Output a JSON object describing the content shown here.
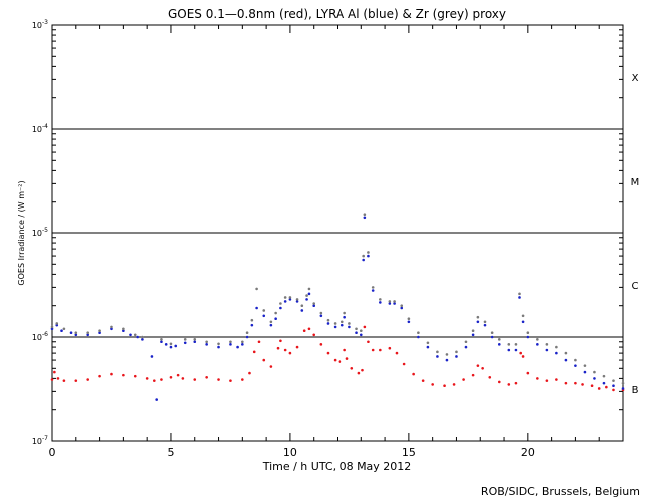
{
  "chart_data": {
    "type": "scatter",
    "title": "GOES 0.1—0.8nm (red), LYRA Al (blue) & Zr (grey) proxy",
    "xlabel": "Time / h UTC, 08 May 2012",
    "ylabel": "GOES Irradiance / (W m⁻²)",
    "xlim": [
      0,
      24
    ],
    "ylim": [
      1e-07,
      0.001
    ],
    "yscale": "log",
    "x_ticks": [
      0,
      5,
      10,
      15,
      20
    ],
    "x_tick_labels": [
      "0",
      "5",
      "10",
      "15",
      "20"
    ],
    "y_ticks": [
      1e-07,
      1e-06,
      1e-05,
      0.0001,
      0.001
    ],
    "y_tick_labels": [
      {
        "base": "10",
        "exp": "-7"
      },
      {
        "base": "10",
        "exp": "-6"
      },
      {
        "base": "10",
        "exp": "-5"
      },
      {
        "base": "10",
        "exp": "-4"
      },
      {
        "base": "10",
        "exp": "-3"
      }
    ],
    "reference_lines": [
      1e-06,
      1e-05,
      0.0001
    ],
    "flare_classes": [
      {
        "label": "X",
        "value": 0.000316
      },
      {
        "label": "M",
        "value": 3.16e-05
      },
      {
        "label": "C",
        "value": 3.16e-06
      },
      {
        "label": "B",
        "value": 3.16e-07
      }
    ],
    "series": [
      {
        "name": "GOES 0.1-0.8nm",
        "color": "#e8151b",
        "points": [
          [
            0.0,
            3.9e-07
          ],
          [
            0.1,
            4.6e-07
          ],
          [
            0.25,
            4e-07
          ],
          [
            0.5,
            3.8e-07
          ],
          [
            1.0,
            3.8e-07
          ],
          [
            1.5,
            3.9e-07
          ],
          [
            2.0,
            4.2e-07
          ],
          [
            2.5,
            4.4e-07
          ],
          [
            3.0,
            4.3e-07
          ],
          [
            3.5,
            4.2e-07
          ],
          [
            4.0,
            4e-07
          ],
          [
            4.3,
            3.8e-07
          ],
          [
            4.6,
            3.9e-07
          ],
          [
            5.0,
            4.1e-07
          ],
          [
            5.3,
            4.3e-07
          ],
          [
            5.5,
            4e-07
          ],
          [
            6.0,
            3.9e-07
          ],
          [
            6.5,
            4.1e-07
          ],
          [
            7.0,
            3.9e-07
          ],
          [
            7.5,
            3.8e-07
          ],
          [
            8.0,
            3.9e-07
          ],
          [
            8.3,
            4.5e-07
          ],
          [
            8.5,
            7.2e-07
          ],
          [
            8.7,
            9e-07
          ],
          [
            8.9,
            6e-07
          ],
          [
            9.2,
            5.2e-07
          ],
          [
            9.5,
            7.8e-07
          ],
          [
            9.6,
            9.2e-07
          ],
          [
            9.8,
            7.5e-07
          ],
          [
            10.0,
            7e-07
          ],
          [
            10.3,
            8e-07
          ],
          [
            10.6,
            1.15e-06
          ],
          [
            10.8,
            1.2e-06
          ],
          [
            11.0,
            1.05e-06
          ],
          [
            11.3,
            8.5e-07
          ],
          [
            11.6,
            7e-07
          ],
          [
            11.9,
            6e-07
          ],
          [
            12.1,
            5.8e-07
          ],
          [
            12.3,
            7.5e-07
          ],
          [
            12.4,
            6.2e-07
          ],
          [
            12.6,
            5e-07
          ],
          [
            12.9,
            4.5e-07
          ],
          [
            13.05,
            4.8e-07
          ],
          [
            13.15,
            1.25e-06
          ],
          [
            13.3,
            9e-07
          ],
          [
            13.5,
            7.5e-07
          ],
          [
            13.8,
            7.5e-07
          ],
          [
            14.2,
            7.8e-07
          ],
          [
            14.5,
            7e-07
          ],
          [
            14.8,
            5.5e-07
          ],
          [
            15.2,
            4.4e-07
          ],
          [
            15.6,
            3.8e-07
          ],
          [
            16.0,
            3.5e-07
          ],
          [
            16.5,
            3.4e-07
          ],
          [
            16.9,
            3.5e-07
          ],
          [
            17.3,
            3.9e-07
          ],
          [
            17.7,
            4.3e-07
          ],
          [
            17.9,
            5.3e-07
          ],
          [
            18.1,
            5e-07
          ],
          [
            18.4,
            4.1e-07
          ],
          [
            18.8,
            3.7e-07
          ],
          [
            19.2,
            3.5e-07
          ],
          [
            19.5,
            3.6e-07
          ],
          [
            19.7,
            7e-07
          ],
          [
            19.8,
            6.5e-07
          ],
          [
            20.0,
            4.5e-07
          ],
          [
            20.4,
            4e-07
          ],
          [
            20.8,
            3.8e-07
          ],
          [
            21.2,
            3.9e-07
          ],
          [
            21.6,
            3.6e-07
          ],
          [
            22.0,
            3.6e-07
          ],
          [
            22.3,
            3.5e-07
          ],
          [
            22.7,
            3.4e-07
          ],
          [
            23.0,
            3.2e-07
          ],
          [
            23.3,
            3.3e-07
          ],
          [
            23.6,
            3.1e-07
          ],
          [
            24.0,
            3.1e-07
          ]
        ]
      },
      {
        "name": "LYRA Al proxy",
        "color": "#1a23c8",
        "points": [
          [
            0.0,
            1.2e-06
          ],
          [
            0.2,
            1.3e-06
          ],
          [
            0.4,
            1.15e-06
          ],
          [
            0.8,
            1.1e-06
          ],
          [
            1.0,
            1.05e-06
          ],
          [
            1.5,
            1.05e-06
          ],
          [
            2.0,
            1.1e-06
          ],
          [
            2.5,
            1.2e-06
          ],
          [
            3.0,
            1.15e-06
          ],
          [
            3.3,
            1.05e-06
          ],
          [
            3.6,
            1e-06
          ],
          [
            3.8,
            9.5e-07
          ],
          [
            4.2,
            6.5e-07
          ],
          [
            4.4,
            2.5e-07
          ],
          [
            4.6,
            9e-07
          ],
          [
            4.8,
            8.5e-07
          ],
          [
            5.0,
            8e-07
          ],
          [
            5.2,
            8.2e-07
          ],
          [
            5.6,
            8.8e-07
          ],
          [
            6.0,
            9e-07
          ],
          [
            6.5,
            8.5e-07
          ],
          [
            7.0,
            8e-07
          ],
          [
            7.5,
            8.5e-07
          ],
          [
            7.8,
            8e-07
          ],
          [
            8.0,
            8.5e-07
          ],
          [
            8.2,
            1e-06
          ],
          [
            8.4,
            1.3e-06
          ],
          [
            8.6,
            1.9e-06
          ],
          [
            8.9,
            1.6e-06
          ],
          [
            9.2,
            1.3e-06
          ],
          [
            9.4,
            1.5e-06
          ],
          [
            9.6,
            1.9e-06
          ],
          [
            9.8,
            2.2e-06
          ],
          [
            10.0,
            2.3e-06
          ],
          [
            10.3,
            2.2e-06
          ],
          [
            10.5,
            1.8e-06
          ],
          [
            10.7,
            2.3e-06
          ],
          [
            10.8,
            2.6e-06
          ],
          [
            11.0,
            2e-06
          ],
          [
            11.3,
            1.6e-06
          ],
          [
            11.6,
            1.35e-06
          ],
          [
            11.9,
            1.25e-06
          ],
          [
            12.2,
            1.3e-06
          ],
          [
            12.3,
            1.55e-06
          ],
          [
            12.5,
            1.25e-06
          ],
          [
            12.8,
            1.1e-06
          ],
          [
            13.0,
            1.05e-06
          ],
          [
            13.1,
            5.5e-06
          ],
          [
            13.15,
            1.4e-05
          ],
          [
            13.3,
            6e-06
          ],
          [
            13.5,
            2.8e-06
          ],
          [
            13.8,
            2.15e-06
          ],
          [
            14.2,
            2.1e-06
          ],
          [
            14.4,
            2.1e-06
          ],
          [
            14.7,
            1.9e-06
          ],
          [
            15.0,
            1.4e-06
          ],
          [
            15.4,
            1e-06
          ],
          [
            15.8,
            8e-07
          ],
          [
            16.2,
            6.5e-07
          ],
          [
            16.6,
            6e-07
          ],
          [
            17.0,
            6.5e-07
          ],
          [
            17.4,
            8e-07
          ],
          [
            17.7,
            1.05e-06
          ],
          [
            17.9,
            1.4e-06
          ],
          [
            18.2,
            1.3e-06
          ],
          [
            18.5,
            1e-06
          ],
          [
            18.8,
            8.5e-07
          ],
          [
            19.2,
            7.5e-07
          ],
          [
            19.5,
            7.5e-07
          ],
          [
            19.65,
            2.4e-06
          ],
          [
            19.8,
            1.4e-06
          ],
          [
            20.0,
            1e-06
          ],
          [
            20.4,
            8.5e-07
          ],
          [
            20.8,
            7.5e-07
          ],
          [
            21.2,
            7e-07
          ],
          [
            21.6,
            6e-07
          ],
          [
            22.0,
            5.3e-07
          ],
          [
            22.4,
            4.6e-07
          ],
          [
            22.8,
            4e-07
          ],
          [
            23.2,
            3.6e-07
          ],
          [
            23.6,
            3.4e-07
          ],
          [
            24.0,
            3.2e-07
          ]
        ]
      },
      {
        "name": "LYRA Zr proxy",
        "color": "#7a7a7a",
        "points": [
          [
            0.0,
            1.25e-06
          ],
          [
            0.2,
            1.35e-06
          ],
          [
            0.5,
            1.2e-06
          ],
          [
            1.0,
            1.1e-06
          ],
          [
            1.5,
            1.1e-06
          ],
          [
            2.0,
            1.15e-06
          ],
          [
            2.5,
            1.25e-06
          ],
          [
            3.0,
            1.2e-06
          ],
          [
            3.5,
            1.05e-06
          ],
          [
            3.8,
            1e-06
          ],
          [
            4.6,
            9.5e-07
          ],
          [
            5.0,
            8.6e-07
          ],
          [
            5.6,
            9.5e-07
          ],
          [
            6.0,
            9.5e-07
          ],
          [
            6.5,
            9e-07
          ],
          [
            7.0,
            8.6e-07
          ],
          [
            7.5,
            9e-07
          ],
          [
            8.0,
            9e-07
          ],
          [
            8.2,
            1.1e-06
          ],
          [
            8.4,
            1.45e-06
          ],
          [
            8.6,
            2.9e-06
          ],
          [
            8.9,
            1.8e-06
          ],
          [
            9.2,
            1.4e-06
          ],
          [
            9.4,
            1.7e-06
          ],
          [
            9.6,
            2.1e-06
          ],
          [
            9.8,
            2.4e-06
          ],
          [
            10.0,
            2.4e-06
          ],
          [
            10.3,
            2.3e-06
          ],
          [
            10.5,
            2e-06
          ],
          [
            10.7,
            2.5e-06
          ],
          [
            10.8,
            2.9e-06
          ],
          [
            11.0,
            2.1e-06
          ],
          [
            11.3,
            1.7e-06
          ],
          [
            11.6,
            1.45e-06
          ],
          [
            11.9,
            1.35e-06
          ],
          [
            12.2,
            1.4e-06
          ],
          [
            12.3,
            1.7e-06
          ],
          [
            12.5,
            1.35e-06
          ],
          [
            12.8,
            1.2e-06
          ],
          [
            13.0,
            1.15e-06
          ],
          [
            13.1,
            6e-06
          ],
          [
            13.15,
            1.5e-05
          ],
          [
            13.3,
            6.5e-06
          ],
          [
            13.5,
            3e-06
          ],
          [
            13.8,
            2.3e-06
          ],
          [
            14.2,
            2.2e-06
          ],
          [
            14.4,
            2.2e-06
          ],
          [
            14.7,
            2e-06
          ],
          [
            15.0,
            1.5e-06
          ],
          [
            15.4,
            1.1e-06
          ],
          [
            15.8,
            8.8e-07
          ],
          [
            16.2,
            7.2e-07
          ],
          [
            16.6,
            6.8e-07
          ],
          [
            17.0,
            7.2e-07
          ],
          [
            17.4,
            9e-07
          ],
          [
            17.7,
            1.15e-06
          ],
          [
            17.9,
            1.55e-06
          ],
          [
            18.2,
            1.4e-06
          ],
          [
            18.5,
            1.1e-06
          ],
          [
            18.8,
            9.5e-07
          ],
          [
            19.2,
            8.5e-07
          ],
          [
            19.5,
            8.5e-07
          ],
          [
            19.65,
            2.6e-06
          ],
          [
            19.8,
            1.6e-06
          ],
          [
            20.0,
            1.1e-06
          ],
          [
            20.4,
            9.5e-07
          ],
          [
            20.8,
            8.5e-07
          ],
          [
            21.2,
            8e-07
          ],
          [
            21.6,
            7e-07
          ],
          [
            22.0,
            6e-07
          ],
          [
            22.4,
            5.3e-07
          ],
          [
            22.8,
            4.6e-07
          ],
          [
            23.2,
            4.2e-07
          ],
          [
            23.6,
            3.8e-07
          ],
          [
            24.0,
            3.6e-07
          ]
        ]
      }
    ],
    "credit": "ROB/SIDC, Brussels, Belgium"
  }
}
